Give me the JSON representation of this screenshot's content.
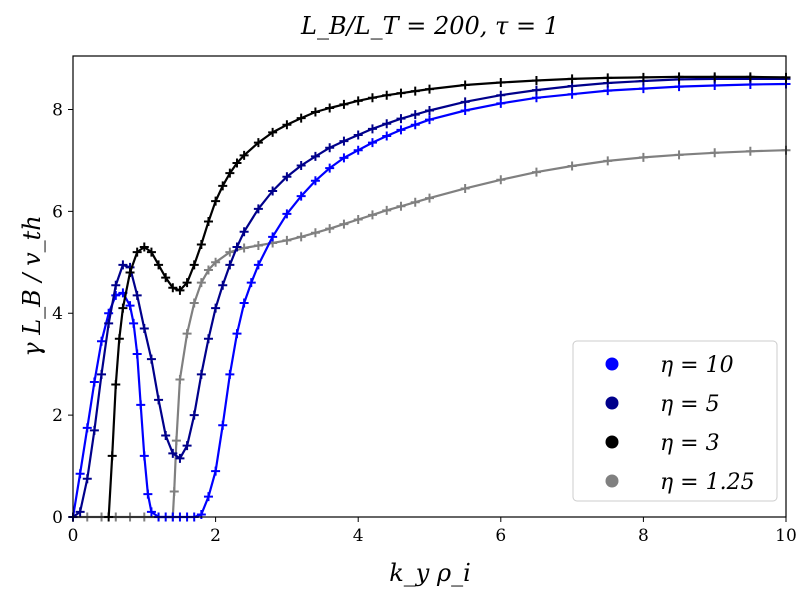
{
  "chart_data": {
    "type": "line",
    "title": "L_B/L_T = 200, τ = 1",
    "xlabel": "k_y ρ_i",
    "ylabel": "γ L_B / v_th",
    "xlim": [
      0,
      10
    ],
    "ylim": [
      0,
      9.05
    ],
    "xticks": [
      "0",
      "2",
      "4",
      "6",
      "8",
      "10"
    ],
    "yticks": [
      "0",
      "2",
      "4",
      "6",
      "8"
    ],
    "grid": false,
    "legend_position": "bottom-right",
    "series": [
      {
        "name": "η = 10",
        "color": "#0000ff",
        "x": [
          0,
          0.1,
          0.2,
          0.3,
          0.4,
          0.5,
          0.6,
          0.7,
          0.8,
          0.85,
          0.9,
          0.95,
          1.0,
          1.05,
          1.1,
          1.2,
          1.3,
          1.4,
          1.5,
          1.6,
          1.7,
          1.8,
          1.9,
          2.0,
          2.1,
          2.2,
          2.3,
          2.4,
          2.5,
          2.6,
          2.8,
          3.0,
          3.2,
          3.4,
          3.6,
          3.8,
          4.0,
          4.2,
          4.4,
          4.6,
          4.8,
          5.0,
          5.5,
          6.0,
          6.5,
          7.0,
          7.5,
          8.0,
          8.5,
          9.0,
          9.5,
          10.0
        ],
        "y": [
          0,
          0.85,
          1.75,
          2.65,
          3.45,
          4.0,
          4.35,
          4.4,
          4.15,
          3.8,
          3.2,
          2.2,
          1.2,
          0.45,
          0.1,
          0,
          0,
          0,
          0,
          0,
          0,
          0.05,
          0.4,
          0.9,
          1.8,
          2.8,
          3.6,
          4.2,
          4.6,
          4.95,
          5.5,
          5.95,
          6.3,
          6.6,
          6.85,
          7.05,
          7.2,
          7.35,
          7.48,
          7.6,
          7.7,
          7.8,
          7.98,
          8.12,
          8.23,
          8.3,
          8.37,
          8.41,
          8.45,
          8.47,
          8.49,
          8.5
        ]
      },
      {
        "name": "η = 5",
        "color": "#00008b",
        "x": [
          0,
          0.1,
          0.2,
          0.3,
          0.4,
          0.5,
          0.6,
          0.7,
          0.8,
          0.9,
          1.0,
          1.1,
          1.2,
          1.3,
          1.4,
          1.5,
          1.6,
          1.7,
          1.8,
          1.9,
          2.0,
          2.1,
          2.2,
          2.3,
          2.4,
          2.6,
          2.8,
          3.0,
          3.2,
          3.4,
          3.6,
          3.8,
          4.0,
          4.2,
          4.4,
          4.6,
          4.8,
          5.0,
          5.5,
          6.0,
          6.5,
          7.0,
          7.5,
          8.0,
          8.5,
          9.0,
          9.5,
          10.0
        ],
        "y": [
          0,
          0.1,
          0.75,
          1.7,
          2.8,
          3.8,
          4.55,
          4.95,
          4.9,
          4.35,
          3.7,
          3.1,
          2.3,
          1.6,
          1.25,
          1.15,
          1.4,
          2.0,
          2.8,
          3.5,
          4.1,
          4.55,
          4.95,
          5.3,
          5.6,
          6.05,
          6.4,
          6.68,
          6.9,
          7.08,
          7.25,
          7.38,
          7.5,
          7.62,
          7.72,
          7.82,
          7.9,
          7.98,
          8.15,
          8.28,
          8.38,
          8.46,
          8.52,
          8.56,
          8.59,
          8.6,
          8.6,
          8.6
        ]
      },
      {
        "name": "η = 3",
        "color": "#000000",
        "x": [
          0.5,
          0.55,
          0.6,
          0.65,
          0.7,
          0.8,
          0.9,
          1.0,
          1.1,
          1.2,
          1.3,
          1.4,
          1.5,
          1.6,
          1.7,
          1.8,
          1.9,
          2.0,
          2.1,
          2.2,
          2.3,
          2.4,
          2.6,
          2.8,
          3.0,
          3.2,
          3.4,
          3.6,
          3.8,
          4.0,
          4.2,
          4.4,
          4.6,
          4.8,
          5.0,
          5.5,
          6.0,
          6.5,
          7.0,
          7.5,
          8.0,
          8.5,
          9.0,
          9.5,
          10.0
        ],
        "y": [
          0,
          1.2,
          2.6,
          3.5,
          4.1,
          4.8,
          5.2,
          5.3,
          5.2,
          4.95,
          4.7,
          4.5,
          4.45,
          4.6,
          4.95,
          5.35,
          5.8,
          6.2,
          6.5,
          6.75,
          6.95,
          7.1,
          7.35,
          7.55,
          7.7,
          7.83,
          7.95,
          8.03,
          8.1,
          8.17,
          8.23,
          8.28,
          8.32,
          8.36,
          8.4,
          8.48,
          8.53,
          8.57,
          8.6,
          8.62,
          8.63,
          8.64,
          8.64,
          8.64,
          8.63
        ]
      },
      {
        "name": "η = 1.25",
        "color": "#808080",
        "x": [
          0,
          0.2,
          0.4,
          0.6,
          0.8,
          1.0,
          1.2,
          1.4,
          1.42,
          1.45,
          1.5,
          1.6,
          1.7,
          1.8,
          1.9,
          2.0,
          2.2,
          2.4,
          2.6,
          2.8,
          3.0,
          3.2,
          3.4,
          3.6,
          3.8,
          4.0,
          4.2,
          4.4,
          4.6,
          4.8,
          5.0,
          5.5,
          6.0,
          6.5,
          7.0,
          7.5,
          8.0,
          8.5,
          9.0,
          9.5,
          10.0
        ],
        "y": [
          0,
          0,
          0,
          0,
          0,
          0,
          0,
          0,
          0.5,
          1.5,
          2.7,
          3.6,
          4.2,
          4.6,
          4.85,
          5.0,
          5.2,
          5.28,
          5.33,
          5.38,
          5.43,
          5.5,
          5.58,
          5.66,
          5.75,
          5.84,
          5.93,
          6.02,
          6.1,
          6.18,
          6.26,
          6.45,
          6.62,
          6.77,
          6.89,
          6.99,
          7.06,
          7.11,
          7.15,
          7.18,
          7.2
        ]
      }
    ]
  }
}
